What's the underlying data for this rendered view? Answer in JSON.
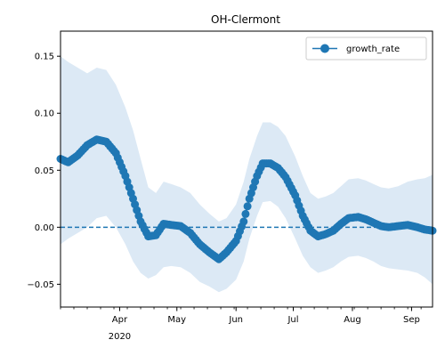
{
  "chart_data": {
    "type": "line",
    "title": "OH-Clermont",
    "xlabel": "",
    "ylabel": "",
    "x_start": "2020-03-01",
    "x_end": "2020-09-12",
    "xlim": [
      "2020-03-01",
      "2020-09-12"
    ],
    "ylim": [
      -0.07,
      0.172
    ],
    "grid": false,
    "legend_position": "top-right",
    "y_ticks": [
      -0.05,
      0.0,
      0.05,
      0.1,
      0.15
    ],
    "y_tick_labels": [
      "−0.05",
      "0.00",
      "0.05",
      "0.10",
      "0.15"
    ],
    "x_ticks": [
      {
        "date": "2020-04-01",
        "label": "Apr"
      },
      {
        "date": "2020-05-01",
        "label": "May"
      },
      {
        "date": "2020-06-01",
        "label": "Jun"
      },
      {
        "date": "2020-07-01",
        "label": "Jul"
      },
      {
        "date": "2020-08-01",
        "label": "Aug"
      },
      {
        "date": "2020-09-01",
        "label": "Sep"
      }
    ],
    "year_label": "2020",
    "reference_line": {
      "y": 0.0,
      "style": "dashed",
      "color": "#1f77b4"
    },
    "series": [
      {
        "name": "growth_rate",
        "color": "#1f77b4",
        "band_color": "#dce9f5",
        "x": [
          "2020-03-01",
          "2020-03-05",
          "2020-03-10",
          "2020-03-15",
          "2020-03-20",
          "2020-03-25",
          "2020-03-30",
          "2020-04-04",
          "2020-04-08",
          "2020-04-12",
          "2020-04-16",
          "2020-04-20",
          "2020-04-24",
          "2020-04-28",
          "2020-05-03",
          "2020-05-08",
          "2020-05-13",
          "2020-05-18",
          "2020-05-23",
          "2020-05-27",
          "2020-06-01",
          "2020-06-05",
          "2020-06-08",
          "2020-06-12",
          "2020-06-15",
          "2020-06-19",
          "2020-06-23",
          "2020-06-27",
          "2020-07-02",
          "2020-07-06",
          "2020-07-10",
          "2020-07-14",
          "2020-07-18",
          "2020-07-22",
          "2020-07-26",
          "2020-07-30",
          "2020-08-04",
          "2020-08-08",
          "2020-08-12",
          "2020-08-16",
          "2020-08-20",
          "2020-08-25",
          "2020-08-30",
          "2020-09-04",
          "2020-09-08",
          "2020-09-12"
        ],
        "values": [
          0.06,
          0.057,
          0.063,
          0.072,
          0.077,
          0.075,
          0.065,
          0.045,
          0.025,
          0.005,
          -0.008,
          -0.007,
          0.003,
          0.002,
          0.001,
          -0.005,
          -0.015,
          -0.022,
          -0.028,
          -0.022,
          -0.012,
          0.005,
          0.025,
          0.045,
          0.056,
          0.056,
          0.052,
          0.044,
          0.028,
          0.01,
          -0.003,
          -0.008,
          -0.006,
          -0.003,
          0.003,
          0.008,
          0.009,
          0.007,
          0.004,
          0.001,
          0.0,
          0.001,
          0.002,
          0.0,
          -0.002,
          -0.003
        ],
        "lower": [
          -0.015,
          -0.01,
          -0.005,
          0.0,
          0.008,
          0.01,
          0.0,
          -0.015,
          -0.03,
          -0.04,
          -0.045,
          -0.042,
          -0.035,
          -0.034,
          -0.035,
          -0.04,
          -0.048,
          -0.052,
          -0.057,
          -0.054,
          -0.046,
          -0.03,
          -0.01,
          0.01,
          0.022,
          0.023,
          0.018,
          0.008,
          -0.01,
          -0.025,
          -0.035,
          -0.04,
          -0.038,
          -0.035,
          -0.03,
          -0.026,
          -0.025,
          -0.027,
          -0.03,
          -0.034,
          -0.036,
          -0.037,
          -0.038,
          -0.04,
          -0.044,
          -0.05
        ],
        "upper": [
          0.15,
          0.145,
          0.14,
          0.135,
          0.14,
          0.138,
          0.125,
          0.105,
          0.085,
          0.06,
          0.035,
          0.03,
          0.04,
          0.038,
          0.035,
          0.03,
          0.02,
          0.012,
          0.005,
          0.008,
          0.02,
          0.04,
          0.06,
          0.08,
          0.092,
          0.092,
          0.088,
          0.08,
          0.062,
          0.045,
          0.03,
          0.025,
          0.027,
          0.03,
          0.036,
          0.042,
          0.043,
          0.041,
          0.038,
          0.035,
          0.034,
          0.036,
          0.04,
          0.042,
          0.043,
          0.046
        ]
      }
    ]
  }
}
